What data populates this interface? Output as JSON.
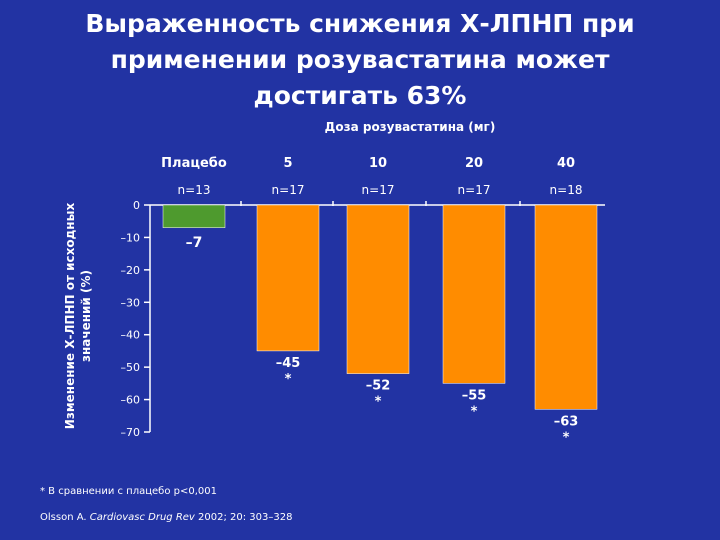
{
  "title": {
    "line1": "Выраженность снижения Х-ЛПНП при",
    "line2": "применении розувастатина может",
    "line3": "достигать 63%"
  },
  "chart_data": {
    "type": "bar",
    "xlabel": "Доза розувастатина (мг)",
    "ylabel_line1": "Изменение Х-ЛПНП от исходных",
    "ylabel_line2": "значений (%)",
    "ylim": [
      -70,
      0
    ],
    "yticks": [
      0,
      -10,
      -20,
      -30,
      -40,
      -50,
      -60,
      -70
    ],
    "ytick_labels": [
      "0",
      "–10",
      "–20",
      "–30",
      "–40",
      "–50",
      "–60",
      "–70"
    ],
    "categories": [
      "Плацебо",
      "5",
      "10",
      "20",
      "40"
    ],
    "n_labels": [
      "n=13",
      "n=17",
      "n=17",
      "n=17",
      "n=18"
    ],
    "values": [
      -7,
      -45,
      -52,
      -55,
      -63
    ],
    "value_labels": [
      "–7",
      "–45",
      "–52",
      "–55",
      "–63"
    ],
    "significance": [
      "",
      "*",
      "*",
      "*",
      "*"
    ],
    "colors": [
      "#4e9a2e",
      "#ff8c00",
      "#ff8c00",
      "#ff8c00",
      "#ff8c00"
    ],
    "grid": false
  },
  "footnote": {
    "text": "* В сравнении с плацебо р<0,001"
  },
  "source": {
    "author": "Olsson A.",
    "journal": "Cardiovasc Drug Rev",
    "details": "2002; 20: 303–328"
  }
}
